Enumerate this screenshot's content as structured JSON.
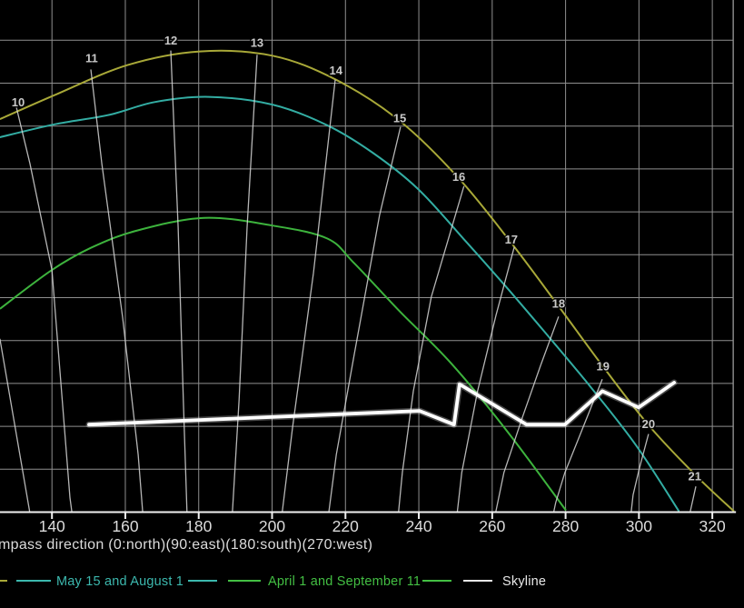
{
  "chart_data": {
    "type": "line",
    "title": "",
    "xlabel_visible": "mpass direction (0:north)(90:east)(180:south)(270:west)",
    "x_ticks": [
      140,
      160,
      180,
      200,
      220,
      240,
      260,
      280,
      300,
      320
    ],
    "x_range_visible": [
      125.8,
      328.8
    ],
    "y_gridline_elevations_deg": [
      5,
      10,
      15,
      20,
      25,
      30,
      35,
      40,
      45,
      50,
      55
    ],
    "grid": true,
    "legend_position": "bottom",
    "series": [
      {
        "id": "yellow-curve",
        "name": "",
        "color": "#a8a838",
        "points": [
          [
            125.8,
            45.8
          ],
          [
            140.7,
            48.6
          ],
          [
            160.5,
            52.1
          ],
          [
            180.3,
            53.7
          ],
          [
            200.1,
            53.2
          ],
          [
            217.4,
            50.4
          ],
          [
            234.8,
            45.6
          ],
          [
            250.9,
            38.9
          ],
          [
            265.7,
            31.1
          ],
          [
            278.1,
            24.0
          ],
          [
            290.5,
            16.8
          ],
          [
            302.9,
            10.0
          ],
          [
            315.7,
            4.2
          ],
          [
            325.9,
            0.1
          ]
        ]
      },
      {
        "id": "teal-curve",
        "name": "May 15 and August 1",
        "color": "#33ada3",
        "points": [
          [
            125.8,
            43.7
          ],
          [
            140.7,
            45.2
          ],
          [
            155.6,
            46.3
          ],
          [
            168.0,
            47.8
          ],
          [
            182.8,
            48.4
          ],
          [
            200.1,
            47.5
          ],
          [
            215.0,
            45.1
          ],
          [
            227.4,
            41.9
          ],
          [
            239.7,
            37.7
          ],
          [
            252.1,
            31.9
          ],
          [
            263.7,
            26.3
          ],
          [
            274.9,
            20.7
          ],
          [
            286.8,
            14.6
          ],
          [
            299.2,
            7.8
          ],
          [
            310.9,
            0.1
          ]
        ]
      },
      {
        "id": "green-curve",
        "name": "April 1 and September 11",
        "color": "#3db33d",
        "points": [
          [
            125.8,
            23.7
          ],
          [
            139.9,
            28.2
          ],
          [
            150.6,
            30.8
          ],
          [
            163.0,
            32.8
          ],
          [
            181.5,
            34.3
          ],
          [
            200.1,
            33.4
          ],
          [
            215.0,
            31.9
          ],
          [
            222.4,
            29.0
          ],
          [
            234.8,
            23.4
          ],
          [
            248.9,
            17.3
          ],
          [
            264.5,
            9.2
          ],
          [
            280.1,
            0.2
          ]
        ]
      },
      {
        "id": "skyline",
        "name": "Skyline",
        "color": "#ffffff",
        "points": [
          [
            150.1,
            10.2
          ],
          [
            240.2,
            11.8
          ],
          [
            249.6,
            10.2
          ],
          [
            251.1,
            14.9
          ],
          [
            269.4,
            10.2
          ],
          [
            279.8,
            10.2
          ],
          [
            290.0,
            14.1
          ],
          [
            299.9,
            12.2
          ],
          [
            309.6,
            15.1
          ]
        ]
      }
    ],
    "hour_lines": [
      {
        "hour": "",
        "points": [
          [
            125.8,
            20.2
          ],
          [
            133.9,
            0.1
          ]
        ]
      },
      {
        "hour": "10",
        "points": [
          [
            130.3,
            47.2
          ],
          [
            134.0,
            40.6
          ],
          [
            140.0,
            28.2
          ],
          [
            144.9,
            1.7
          ],
          [
            145.4,
            0.1
          ]
        ]
      },
      {
        "hour": "11",
        "points": [
          [
            150.6,
            51.6
          ],
          [
            153.6,
            40.6
          ],
          [
            159.3,
            22.6
          ],
          [
            163.5,
            6.7
          ],
          [
            164.7,
            0.1
          ]
        ]
      },
      {
        "hour": "12",
        "points": [
          [
            172.4,
            53.8
          ],
          [
            174.4,
            33.2
          ],
          [
            175.8,
            13.1
          ],
          [
            176.8,
            0.1
          ]
        ]
      },
      {
        "hour": "13",
        "points": [
          [
            195.9,
            53.3
          ],
          [
            193.2,
            33.2
          ],
          [
            191.0,
            13.1
          ],
          [
            189.2,
            0.1
          ]
        ]
      },
      {
        "hour": "14",
        "points": [
          [
            217.2,
            50.4
          ],
          [
            211.3,
            27.9
          ],
          [
            205.6,
            9.9
          ],
          [
            202.8,
            0.1
          ]
        ]
      },
      {
        "hour": "15",
        "points": [
          [
            235.0,
            44.9
          ],
          [
            229.3,
            34.6
          ],
          [
            222.4,
            18.4
          ],
          [
            217.5,
            6.7
          ],
          [
            215.5,
            0.1
          ]
        ]
      },
      {
        "hour": "16",
        "points": [
          [
            252.3,
            38.0
          ],
          [
            243.4,
            25.1
          ],
          [
            238.5,
            14.1
          ],
          [
            235.5,
            4.6
          ],
          [
            234.5,
            0.1
          ]
        ]
      },
      {
        "hour": "17",
        "points": [
          [
            266.0,
            30.9
          ],
          [
            261.0,
            22.9
          ],
          [
            256.0,
            14.1
          ],
          [
            251.7,
            4.6
          ],
          [
            250.5,
            0.1
          ]
        ]
      },
      {
        "hour": "18",
        "points": [
          [
            278.1,
            22.8
          ],
          [
            273.2,
            17.1
          ],
          [
            268.2,
            11.0
          ],
          [
            263.2,
            4.6
          ],
          [
            261.0,
            0.1
          ]
        ]
      },
      {
        "hour": "19",
        "points": [
          [
            290.0,
            15.5
          ],
          [
            284.3,
            9.4
          ],
          [
            279.8,
            4.6
          ],
          [
            277.3,
            1.1
          ],
          [
            276.8,
            0.1
          ]
        ]
      },
      {
        "hour": "20",
        "points": [
          [
            302.6,
            9.1
          ],
          [
            300.1,
            5.1
          ],
          [
            298.4,
            2.0
          ],
          [
            297.9,
            0.1
          ]
        ]
      },
      {
        "hour": "21",
        "points": [
          [
            315.5,
            3.0
          ],
          [
            314.0,
            0.1
          ]
        ]
      }
    ],
    "hour_labels": [
      {
        "text": "10",
        "az": 130.8,
        "el": 47.8
      },
      {
        "text": "11",
        "az": 150.8,
        "el": 52.9
      },
      {
        "text": "12",
        "az": 172.4,
        "el": 55.0
      },
      {
        "text": "13",
        "az": 195.9,
        "el": 54.7
      },
      {
        "text": "14",
        "az": 217.4,
        "el": 51.5
      },
      {
        "text": "15",
        "az": 234.8,
        "el": 45.9
      },
      {
        "text": "16",
        "az": 250.9,
        "el": 39.1
      },
      {
        "text": "17",
        "az": 265.2,
        "el": 31.8
      },
      {
        "text": "18",
        "az": 278.1,
        "el": 24.3
      },
      {
        "text": "19",
        "az": 290.2,
        "el": 17.0
      },
      {
        "text": "20",
        "az": 302.6,
        "el": 10.3
      },
      {
        "text": "21",
        "az": 315.2,
        "el": 4.2
      }
    ]
  },
  "legend": {
    "clipped_entry": {
      "label": "",
      "color": "#a8a838"
    },
    "entries": [
      {
        "label": "May 15 and August 1",
        "color": "#3cb8ae"
      },
      {
        "label": "April 1 and September 11",
        "color": "#43bf43"
      },
      {
        "label": "Skyline",
        "color": "#e8e8e8"
      }
    ]
  },
  "colors": {
    "background": "#000000",
    "grid": "#8f8f8f",
    "axis": "#f0f0f0",
    "tick_text": "#dcdcdc",
    "hour_line": "#d6d6d6",
    "hour_label_text": "#c9c9c9"
  }
}
